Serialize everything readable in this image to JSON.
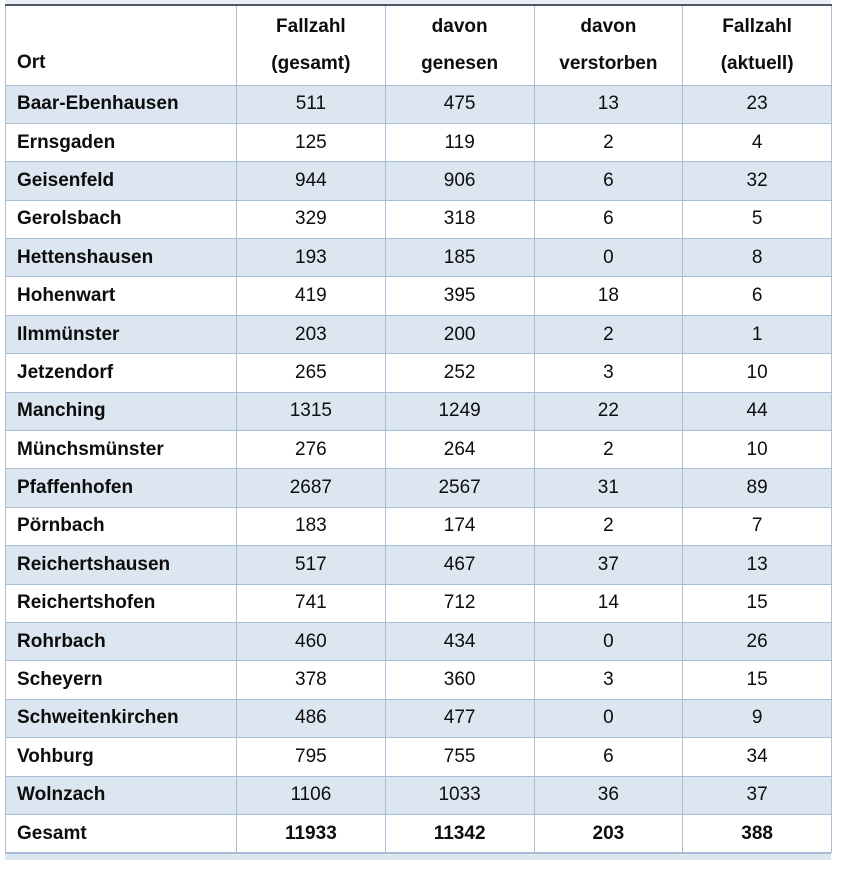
{
  "colors": {
    "shaded_row": "#dce6f1",
    "grid_border": "#a8bdd6",
    "table_top_border": "#4e5862",
    "top_strip": "#e9eff7",
    "bottom_strip": "#dce6f1"
  },
  "table": {
    "columns": [
      {
        "line1": "",
        "line2": "Ort"
      },
      {
        "line1": "Fallzahl",
        "line2": "(gesamt)"
      },
      {
        "line1": "davon",
        "line2": "genesen"
      },
      {
        "line1": "davon",
        "line2": "verstorben"
      },
      {
        "line1": "Fallzahl",
        "line2": "(aktuell)"
      }
    ],
    "rows": [
      {
        "ort": "Baar-Ebenhausen",
        "gesamt": "511",
        "genesen": "475",
        "verstorben": "13",
        "aktuell": "23"
      },
      {
        "ort": "Ernsgaden",
        "gesamt": "125",
        "genesen": "119",
        "verstorben": "2",
        "aktuell": "4"
      },
      {
        "ort": "Geisenfeld",
        "gesamt": "944",
        "genesen": "906",
        "verstorben": "6",
        "aktuell": "32"
      },
      {
        "ort": "Gerolsbach",
        "gesamt": "329",
        "genesen": "318",
        "verstorben": "6",
        "aktuell": "5"
      },
      {
        "ort": "Hettenshausen",
        "gesamt": "193",
        "genesen": "185",
        "verstorben": "0",
        "aktuell": "8"
      },
      {
        "ort": "Hohenwart",
        "gesamt": "419",
        "genesen": "395",
        "verstorben": "18",
        "aktuell": "6"
      },
      {
        "ort": "Ilmmünster",
        "gesamt": "203",
        "genesen": "200",
        "verstorben": "2",
        "aktuell": "1"
      },
      {
        "ort": "Jetzendorf",
        "gesamt": "265",
        "genesen": "252",
        "verstorben": "3",
        "aktuell": "10"
      },
      {
        "ort": "Manching",
        "gesamt": "1315",
        "genesen": "1249",
        "verstorben": "22",
        "aktuell": "44"
      },
      {
        "ort": "Münchsmünster",
        "gesamt": "276",
        "genesen": "264",
        "verstorben": "2",
        "aktuell": "10"
      },
      {
        "ort": "Pfaffenhofen",
        "gesamt": "2687",
        "genesen": "2567",
        "verstorben": "31",
        "aktuell": "89"
      },
      {
        "ort": "Pörnbach",
        "gesamt": "183",
        "genesen": "174",
        "verstorben": "2",
        "aktuell": "7"
      },
      {
        "ort": "Reichertshausen",
        "gesamt": "517",
        "genesen": "467",
        "verstorben": "37",
        "aktuell": "13"
      },
      {
        "ort": "Reichertshofen",
        "gesamt": "741",
        "genesen": "712",
        "verstorben": "14",
        "aktuell": "15"
      },
      {
        "ort": "Rohrbach",
        "gesamt": "460",
        "genesen": "434",
        "verstorben": "0",
        "aktuell": "26"
      },
      {
        "ort": "Scheyern",
        "gesamt": "378",
        "genesen": "360",
        "verstorben": "3",
        "aktuell": "15"
      },
      {
        "ort": "Schweitenkirchen",
        "gesamt": "486",
        "genesen": "477",
        "verstorben": "0",
        "aktuell": "9"
      },
      {
        "ort": "Vohburg",
        "gesamt": "795",
        "genesen": "755",
        "verstorben": "6",
        "aktuell": "34"
      },
      {
        "ort": "Wolnzach",
        "gesamt": "1106",
        "genesen": "1033",
        "verstorben": "36",
        "aktuell": "37"
      }
    ],
    "total_row": {
      "ort": "Gesamt",
      "gesamt": "11933",
      "genesen": "11342",
      "verstorben": "203",
      "aktuell": "388"
    }
  }
}
